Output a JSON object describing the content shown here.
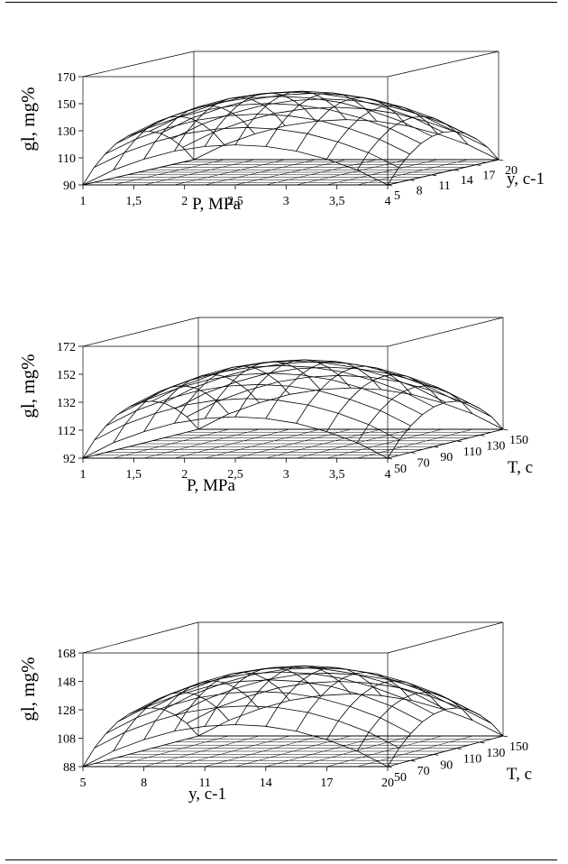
{
  "chart_data": [
    {
      "type": "surface",
      "zlabel": "gl, mg%",
      "xlabel": "P, MPa",
      "ylabel": "y, c-1",
      "x_ticks": [
        "1",
        "1,5",
        "2",
        "2,5",
        "3",
        "3,5",
        "4"
      ],
      "y_ticks": [
        "5",
        "8",
        "11",
        "14",
        "17",
        "20"
      ],
      "z_ticks": [
        "90",
        "110",
        "130",
        "150",
        "170"
      ],
      "xlim": [
        1,
        4
      ],
      "ylim": [
        5,
        20
      ],
      "zlim": [
        90,
        170
      ],
      "grid": false,
      "x": [
        1,
        1.3,
        1.6,
        1.9,
        2.2,
        2.5,
        2.8,
        3.1,
        3.4,
        3.7,
        4
      ],
      "y": [
        5,
        6.5,
        8,
        9.5,
        11,
        12.5,
        14,
        15.5,
        17,
        18.5,
        20
      ],
      "z": [
        [
          90,
          101,
          109,
          115,
          118.4,
          119.6,
          118.4,
          115,
          109,
          101,
          90
        ],
        [
          101,
          112,
          120,
          126,
          129.4,
          130.6,
          129.4,
          126,
          120,
          112,
          101
        ],
        [
          109,
          120,
          128,
          134,
          137.4,
          138.6,
          137.4,
          134,
          128,
          120,
          109
        ],
        [
          115,
          126,
          134,
          140,
          143.4,
          144.6,
          143.4,
          140,
          134,
          126,
          115
        ],
        [
          118.4,
          129.4,
          137.4,
          143.4,
          146.8,
          148,
          146.8,
          143.4,
          137.4,
          129.4,
          118.4
        ],
        [
          119.6,
          130.6,
          138.6,
          144.6,
          148,
          149.2,
          148,
          144.6,
          138.6,
          130.6,
          119.6
        ],
        [
          118.4,
          129.4,
          137.4,
          143.4,
          146.8,
          148,
          146.8,
          143.4,
          137.4,
          129.4,
          118.4
        ],
        [
          115,
          126,
          134,
          140,
          143.4,
          144.6,
          143.4,
          140,
          134,
          126,
          115
        ],
        [
          109,
          120,
          128,
          134,
          137.4,
          138.6,
          137.4,
          134,
          128,
          120,
          109
        ],
        [
          101,
          112,
          120,
          126,
          129.4,
          130.6,
          129.4,
          126,
          120,
          112,
          101
        ],
        [
          90,
          101,
          109,
          115,
          118.4,
          119.6,
          118.4,
          115,
          109,
          101,
          90
        ]
      ]
    },
    {
      "type": "surface",
      "zlabel": "gl, mg%",
      "xlabel": "P, MPa",
      "ylabel": "T, c",
      "x_ticks": [
        "1",
        "1,5",
        "2",
        "2,5",
        "3",
        "3,5",
        "4"
      ],
      "y_ticks": [
        "50",
        "70",
        "90",
        "110",
        "130",
        "150"
      ],
      "z_ticks": [
        "92",
        "112",
        "132",
        "152",
        "172"
      ],
      "xlim": [
        1,
        4
      ],
      "ylim": [
        50,
        150
      ],
      "zlim": [
        92,
        172
      ],
      "grid": false,
      "x": [
        1,
        1.3,
        1.6,
        1.9,
        2.2,
        2.5,
        2.8,
        3.1,
        3.4,
        3.7,
        4
      ],
      "y": [
        50,
        60,
        70,
        80,
        90,
        100,
        110,
        120,
        130,
        140,
        150
      ],
      "z": [
        [
          92,
          103,
          111,
          117,
          120.4,
          121.6,
          120.4,
          117,
          111,
          103,
          92
        ],
        [
          103,
          114,
          122,
          128,
          131.4,
          132.6,
          131.4,
          128,
          122,
          114,
          103
        ],
        [
          111,
          122,
          130,
          136,
          139.4,
          140.6,
          139.4,
          136,
          130,
          122,
          111
        ],
        [
          117,
          128,
          136,
          142,
          145.4,
          146.6,
          145.4,
          142,
          136,
          128,
          117
        ],
        [
          120.4,
          131.4,
          139.4,
          145.4,
          148.8,
          150,
          148.8,
          145.4,
          139.4,
          131.4,
          120.4
        ],
        [
          121.6,
          132.6,
          140.6,
          146.6,
          150,
          151.2,
          150,
          146.6,
          140.6,
          132.6,
          121.6
        ],
        [
          120.4,
          131.4,
          139.4,
          145.4,
          148.8,
          150,
          148.8,
          145.4,
          139.4,
          131.4,
          120.4
        ],
        [
          117,
          128,
          136,
          142,
          145.4,
          146.6,
          145.4,
          142,
          136,
          128,
          117
        ],
        [
          111,
          122,
          130,
          136,
          139.4,
          140.6,
          139.4,
          136,
          130,
          122,
          111
        ],
        [
          103,
          114,
          122,
          128,
          131.4,
          132.6,
          131.4,
          128,
          122,
          114,
          103
        ],
        [
          92,
          103,
          111,
          117,
          120.4,
          121.6,
          120.4,
          117,
          111,
          103,
          92
        ]
      ]
    },
    {
      "type": "surface",
      "zlabel": "gl, mg%",
      "xlabel": "y, c-1",
      "ylabel": "T, c",
      "x_ticks": [
        "5",
        "8",
        "11",
        "14",
        "17",
        "20"
      ],
      "y_ticks": [
        "50",
        "70",
        "90",
        "110",
        "130",
        "150"
      ],
      "z_ticks": [
        "88",
        "108",
        "128",
        "148",
        "168"
      ],
      "xlim": [
        5,
        20
      ],
      "ylim": [
        50,
        150
      ],
      "zlim": [
        88,
        168
      ],
      "grid": false,
      "x": [
        5,
        6.5,
        8,
        9.5,
        11,
        12.5,
        14,
        15.5,
        17,
        18.5,
        20
      ],
      "y": [
        50,
        60,
        70,
        80,
        90,
        100,
        110,
        120,
        130,
        140,
        150
      ],
      "z": [
        [
          88,
          99,
          107,
          113,
          116.4,
          117.6,
          116.4,
          113,
          107,
          99,
          88
        ],
        [
          99,
          110,
          118,
          124,
          127.4,
          128.6,
          127.4,
          124,
          118,
          110,
          99
        ],
        [
          107,
          118,
          126,
          132,
          135.4,
          136.6,
          135.4,
          132,
          126,
          118,
          107
        ],
        [
          113,
          124,
          132,
          138,
          141.4,
          142.6,
          141.4,
          138,
          132,
          124,
          113
        ],
        [
          116.4,
          127.4,
          135.4,
          141.4,
          144.8,
          146,
          144.8,
          141.4,
          135.4,
          127.4,
          116.4
        ],
        [
          117.6,
          128.6,
          136.6,
          142.6,
          146,
          147.2,
          146,
          142.6,
          136.6,
          128.6,
          117.6
        ],
        [
          116.4,
          127.4,
          135.4,
          141.4,
          144.8,
          146,
          144.8,
          141.4,
          135.4,
          127.4,
          116.4
        ],
        [
          113,
          124,
          132,
          138,
          141.4,
          142.6,
          141.4,
          138,
          132,
          124,
          113
        ],
        [
          107,
          118,
          126,
          132,
          135.4,
          136.6,
          135.4,
          132,
          126,
          118,
          107
        ],
        [
          99,
          110,
          118,
          124,
          127.4,
          128.6,
          127.4,
          124,
          118,
          110,
          99
        ],
        [
          88,
          99,
          107,
          113,
          116.4,
          117.6,
          116.4,
          113,
          107,
          99,
          88
        ]
      ]
    }
  ]
}
